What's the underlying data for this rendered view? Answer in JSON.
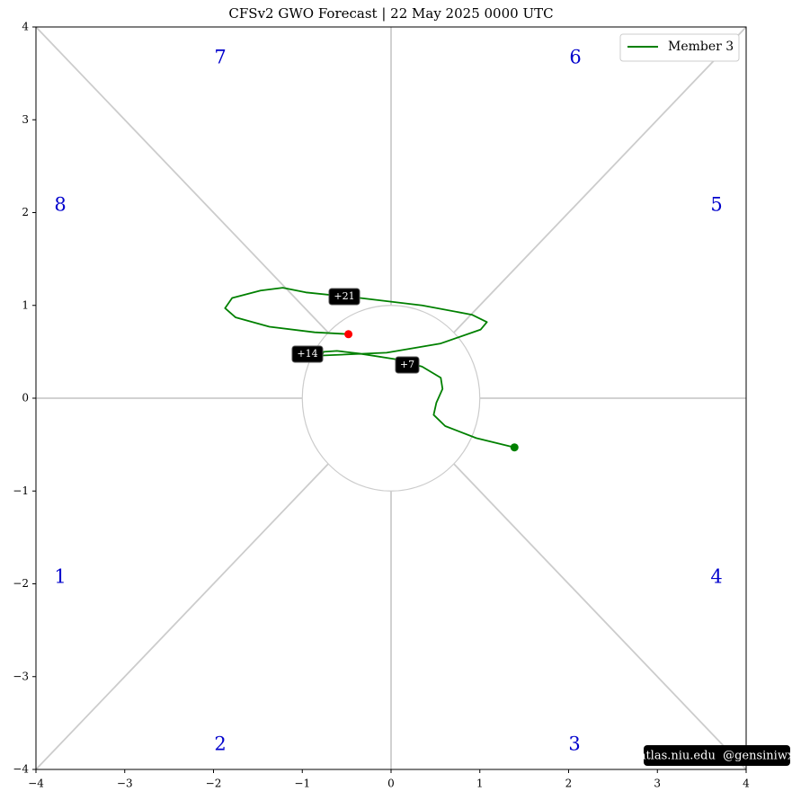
{
  "chart_data": {
    "type": "line",
    "title": "CFSv2 GWO Forecast  |  22  May  2025 0000 UTC",
    "xlim": [
      -4,
      4
    ],
    "ylim": [
      -4,
      4
    ],
    "xticks": [
      {
        "value": -4,
        "label": "−4"
      },
      {
        "value": -3,
        "label": "−3"
      },
      {
        "value": -2,
        "label": "−2"
      },
      {
        "value": -1,
        "label": "−1"
      },
      0,
      1,
      2,
      3,
      4
    ],
    "yticks": [
      {
        "value": -4,
        "label": "−4"
      },
      {
        "value": -3,
        "label": "−3"
      },
      {
        "value": -2,
        "label": "−2"
      },
      {
        "value": -1,
        "label": "−1"
      },
      0,
      1,
      2,
      3,
      4
    ],
    "legend": "upper right",
    "series": [
      {
        "name": "Member 3",
        "color": "#008000",
        "start_color": "#008000",
        "end_color": "#ff0000",
        "x": [
          1.39,
          0.96,
          0.61,
          0.48,
          0.51,
          0.58,
          0.56,
          0.35,
          0.05,
          -0.35,
          -0.61,
          -0.76,
          -0.78,
          -0.05,
          0.56,
          1.01,
          1.08,
          0.91,
          0.35,
          -0.35,
          -0.96,
          -1.22,
          -1.47,
          -1.79,
          -1.87,
          -1.75,
          -1.37,
          -0.86,
          -0.48
        ],
        "values": [
          -0.53,
          -0.43,
          -0.3,
          -0.18,
          -0.05,
          0.1,
          0.22,
          0.34,
          0.42,
          0.48,
          0.51,
          0.5,
          0.46,
          0.49,
          0.59,
          0.74,
          0.82,
          0.9,
          1.0,
          1.08,
          1.14,
          1.19,
          1.16,
          1.08,
          0.97,
          0.87,
          0.77,
          0.71,
          0.69
        ]
      }
    ],
    "annotations": [
      "+7",
      "+14",
      "+21"
    ],
    "phase_labels": [
      "1",
      "2",
      "3",
      "4",
      "5",
      "6",
      "7",
      "8"
    ],
    "watermark": "atlas.niu.edu  @gensiniwx"
  }
}
